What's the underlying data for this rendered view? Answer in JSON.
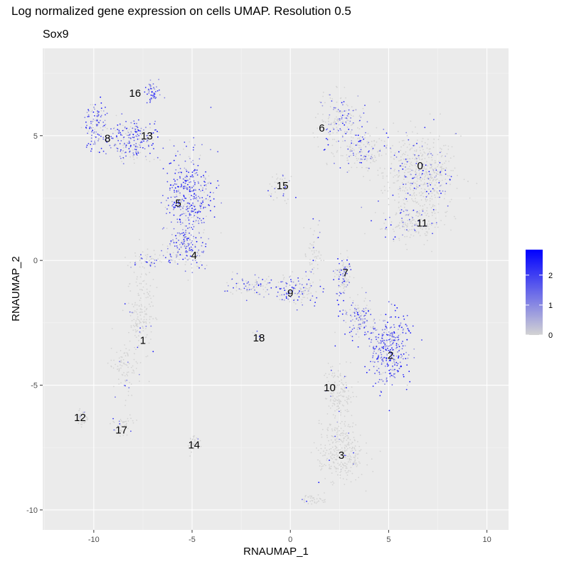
{
  "page": {
    "title": "Log normalized gene expression on cells UMAP. Resolution 0.5",
    "subtitle": "Sox9"
  },
  "chart_data": {
    "type": "scatter",
    "xlabel": "RNAUMAP_1",
    "ylabel": "RNAUMAP_2",
    "xlim": [
      -12.6,
      11.1
    ],
    "ylim": [
      -10.8,
      8.5
    ],
    "x_ticks": [
      -10,
      -5,
      0,
      5,
      10
    ],
    "y_ticks": [
      -10,
      -5,
      0,
      5
    ],
    "x_tick_labels": [
      "-10",
      "-5",
      "0",
      "5",
      "10"
    ],
    "y_tick_labels": [
      "-10",
      "-5",
      "0",
      "5"
    ],
    "grid": true,
    "background": "#ebebeb",
    "color_scale": {
      "low": "#d3d3d3",
      "high": "#0000ff",
      "range": [
        0,
        2.85
      ],
      "ticks": [
        0,
        1,
        2
      ],
      "tick_labels": [
        "0",
        "1",
        "2"
      ],
      "legend_position": "right"
    },
    "cluster_labels": [
      {
        "label": "0",
        "x": 6.6,
        "y": 3.8
      },
      {
        "label": "1",
        "x": -7.5,
        "y": -3.2
      },
      {
        "label": "2",
        "x": 5.1,
        "y": -3.8
      },
      {
        "label": "3",
        "x": 2.6,
        "y": -7.8
      },
      {
        "label": "4",
        "x": -4.9,
        "y": 0.2
      },
      {
        "label": "5",
        "x": -5.7,
        "y": 2.3
      },
      {
        "label": "6",
        "x": 1.6,
        "y": 5.3
      },
      {
        "label": "7",
        "x": 2.8,
        "y": -0.5
      },
      {
        "label": "8",
        "x": -9.3,
        "y": 4.9
      },
      {
        "label": "9",
        "x": 0.0,
        "y": -1.3
      },
      {
        "label": "10",
        "x": 2.0,
        "y": -5.1
      },
      {
        "label": "11",
        "x": 6.7,
        "y": 1.5
      },
      {
        "label": "12",
        "x": -10.7,
        "y": -6.3
      },
      {
        "label": "13",
        "x": -7.3,
        "y": 5.0
      },
      {
        "label": "14",
        "x": -4.9,
        "y": -7.4
      },
      {
        "label": "15",
        "x": -0.4,
        "y": 3.0
      },
      {
        "label": "16",
        "x": -7.9,
        "y": 6.7
      },
      {
        "label": "17",
        "x": -8.6,
        "y": -6.8
      },
      {
        "label": "18",
        "x": -1.6,
        "y": -3.1
      }
    ]
  }
}
